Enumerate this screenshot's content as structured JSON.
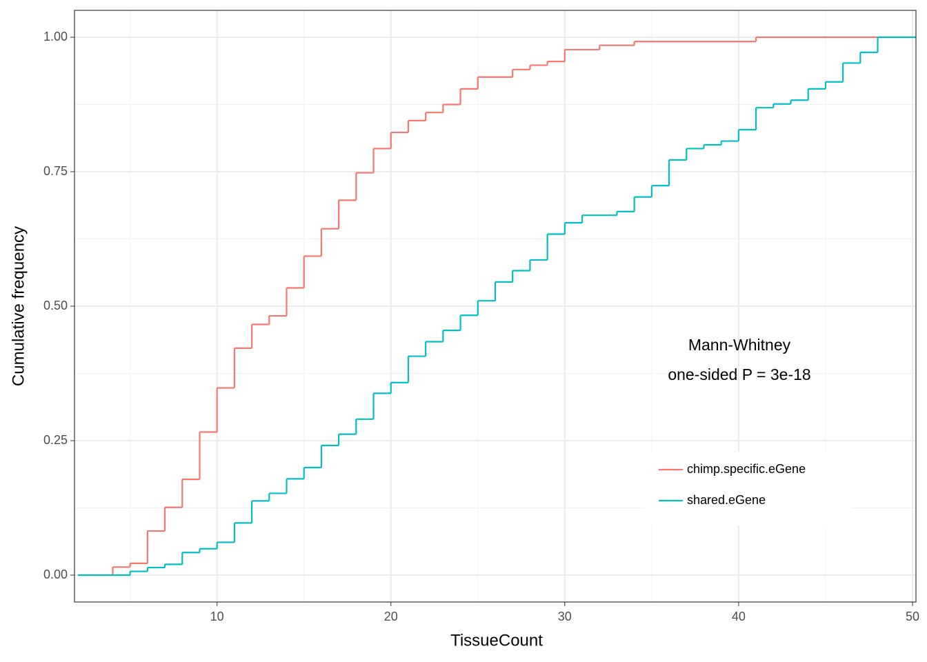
{
  "chart_data": {
    "type": "step",
    "x_label": "TissueCount",
    "y_label": "Cumulative frequency",
    "annotation": [
      "Mann-Whitney",
      "one-sided P = 3e-18"
    ],
    "xlim": [
      1.8,
      50.2
    ],
    "ylim": [
      -0.05,
      1.05
    ],
    "xticks": [
      10,
      20,
      30,
      40,
      50
    ],
    "yticks": [
      {
        "value": 0,
        "label": "0.00"
      },
      {
        "value": 0.25,
        "label": "0.25"
      },
      {
        "value": 0.5,
        "label": "0.50"
      },
      {
        "value": 0.75,
        "label": "0.75"
      },
      {
        "value": 1,
        "label": "1.00"
      }
    ],
    "grid": true,
    "legend": "inside",
    "series": [
      {
        "name": "chimp.specific.eGene",
        "color": "#F8766D",
        "x": [
          2,
          4,
          5,
          6,
          7,
          8,
          9,
          10,
          11,
          12,
          13,
          14,
          15,
          16,
          17,
          18,
          19,
          20,
          21,
          22,
          23,
          24,
          25,
          27,
          28,
          29,
          30,
          32,
          34,
          41
        ],
        "values": [
          0,
          0.015,
          0.022,
          0.082,
          0.126,
          0.178,
          0.266,
          0.348,
          0.422,
          0.466,
          0.482,
          0.534,
          0.593,
          0.644,
          0.697,
          0.748,
          0.793,
          0.823,
          0.845,
          0.86,
          0.875,
          0.904,
          0.926,
          0.94,
          0.948,
          0.955,
          0.977,
          0.985,
          0.992,
          1
        ]
      },
      {
        "name": "shared.eGene",
        "color": "#00BFC4",
        "x": [
          2,
          5,
          6,
          7,
          8,
          9,
          10,
          11,
          12,
          13,
          14,
          15,
          16,
          17,
          18,
          19,
          20,
          21,
          22,
          23,
          24,
          25,
          26,
          27,
          28,
          29,
          30,
          31,
          33,
          34,
          35,
          36,
          37,
          38,
          39,
          40,
          41,
          42,
          43,
          44,
          45,
          46,
          47,
          48
        ],
        "values": [
          0,
          0.007,
          0.014,
          0.02,
          0.042,
          0.049,
          0.061,
          0.097,
          0.138,
          0.152,
          0.179,
          0.2,
          0.241,
          0.262,
          0.29,
          0.338,
          0.358,
          0.407,
          0.434,
          0.455,
          0.483,
          0.51,
          0.545,
          0.566,
          0.586,
          0.634,
          0.655,
          0.669,
          0.676,
          0.703,
          0.724,
          0.772,
          0.793,
          0.8,
          0.807,
          0.828,
          0.869,
          0.876,
          0.883,
          0.904,
          0.917,
          0.952,
          0.972,
          1
        ]
      }
    ]
  }
}
